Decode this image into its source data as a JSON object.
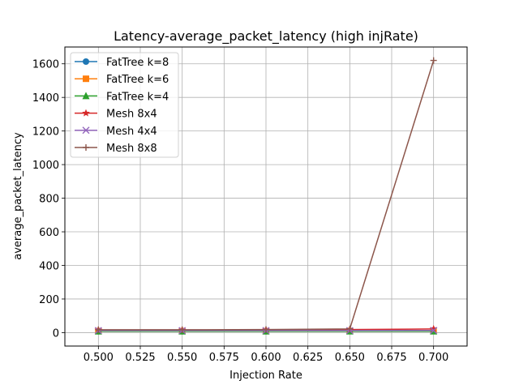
{
  "chart_data": {
    "type": "line",
    "title": "Latency-average_packet_latency (high injRate)",
    "xlabel": "Injection Rate",
    "ylabel": "average_packet_latency",
    "xlim": [
      0.48,
      0.72
    ],
    "ylim": [
      -80,
      1700
    ],
    "xticks": [
      0.5,
      0.525,
      0.55,
      0.575,
      0.6,
      0.625,
      0.65,
      0.675,
      0.7
    ],
    "xtick_labels": [
      "0.500",
      "0.525",
      "0.550",
      "0.575",
      "0.600",
      "0.625",
      "0.650",
      "0.675",
      "0.700"
    ],
    "yticks": [
      0,
      200,
      400,
      600,
      800,
      1000,
      1200,
      1400,
      1600
    ],
    "ytick_labels": [
      "0",
      "200",
      "400",
      "600",
      "800",
      "1000",
      "1200",
      "1400",
      "1600"
    ],
    "grid": true,
    "legend_position": "top-left",
    "x": [
      0.5,
      0.55,
      0.6,
      0.65,
      0.7
    ],
    "series": [
      {
        "name": "FatTree k=8",
        "color": "#1f77b4",
        "marker": "circle",
        "values": [
          8,
          8,
          8,
          9,
          10
        ]
      },
      {
        "name": "FatTree k=6",
        "color": "#ff7f0e",
        "marker": "square",
        "values": [
          9,
          9,
          9,
          10,
          11
        ]
      },
      {
        "name": "FatTree k=4",
        "color": "#2ca02c",
        "marker": "triangle",
        "values": [
          8,
          8,
          8,
          8,
          8
        ]
      },
      {
        "name": "Mesh 8x4",
        "color": "#d62728",
        "marker": "star",
        "values": [
          15,
          15,
          16,
          18,
          22
        ]
      },
      {
        "name": "Mesh 4x4",
        "color": "#9467bd",
        "marker": "x",
        "values": [
          12,
          12,
          12,
          12,
          13
        ]
      },
      {
        "name": "Mesh 8x8",
        "color": "#8c564b",
        "marker": "plus",
        "values": [
          17,
          17,
          18,
          22,
          1620
        ]
      }
    ]
  }
}
